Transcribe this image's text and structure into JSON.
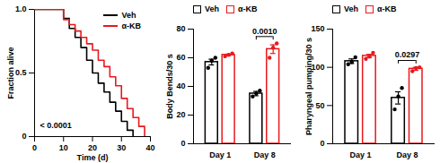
{
  "chart_data": [
    {
      "type": "step",
      "x_label": "Time (d)",
      "y_label": "Fraction alive",
      "x": [
        0,
        10,
        12,
        14,
        16,
        18,
        20,
        22,
        24,
        26,
        28,
        30,
        32,
        34,
        36,
        38
      ],
      "series": [
        {
          "name": "Veh",
          "color": "#000000",
          "values": [
            1,
            0.93,
            0.85,
            0.78,
            0.7,
            0.6,
            0.5,
            0.42,
            0.35,
            0.27,
            0.2,
            0.12,
            0.05,
            0,
            null,
            null
          ]
        },
        {
          "name": "α-KB",
          "color": "#e8191e",
          "values": [
            1,
            0.92,
            0.88,
            0.83,
            0.78,
            0.73,
            0.68,
            0.6,
            0.55,
            0.47,
            0.4,
            0.3,
            0.22,
            0.15,
            0.08,
            0
          ]
        }
      ],
      "xlim": [
        0,
        40
      ],
      "xticks": [
        0,
        10,
        20,
        30,
        40
      ],
      "ylim": [
        0,
        1
      ],
      "yticks": [
        0,
        0.5,
        {
          "value": 1,
          "label": "1.0"
        }
      ],
      "legend": "top-right",
      "annotations": [
        {
          "text": "< 0.0001"
        }
      ]
    },
    {
      "type": "bar",
      "y_label": "Body Bends/30 s",
      "categories": [
        "Day 1",
        "Day 8"
      ],
      "series": [
        {
          "name": "Veh",
          "color": "#000000",
          "values": [
            57,
            35
          ],
          "errors": [
            2,
            1.5
          ],
          "points": [
            [
              53,
              58,
              60
            ],
            [
              33,
              35,
              37
            ]
          ]
        },
        {
          "name": "α-KB",
          "color": "#e8191e",
          "values": [
            62,
            66
          ],
          "errors": [
            0.6,
            3
          ],
          "points": [
            [
              61,
              62,
              63
            ],
            [
              60,
              67,
              70
            ]
          ]
        }
      ],
      "ylim": [
        0,
        80
      ],
      "yticks": [
        0,
        20,
        40,
        60,
        80
      ],
      "legend": "top-left",
      "annotations": [
        {
          "text": "0.0010",
          "category": "Day 8"
        }
      ]
    },
    {
      "type": "bar",
      "y_label": "Pharyngeal pumping/30 s",
      "categories": [
        "Day 1",
        "Day 8"
      ],
      "series": [
        {
          "name": "Veh",
          "color": "#000000",
          "values": [
            108,
            60
          ],
          "errors": [
            3,
            8
          ],
          "points": [
            [
              104,
              107,
              113
            ],
            [
              45,
              62,
              73
            ]
          ]
        },
        {
          "name": "α-KB",
          "color": "#e8191e",
          "values": [
            115,
            98
          ],
          "errors": [
            2,
            2
          ],
          "points": [
            [
              111,
              114,
              119
            ],
            [
              95,
              99,
              100
            ]
          ]
        }
      ],
      "ylim": [
        0,
        150
      ],
      "yticks": [
        0,
        50,
        100,
        150
      ],
      "legend": "top-left",
      "annotations": [
        {
          "text": "0.0297",
          "category": "Day 8"
        }
      ]
    }
  ]
}
